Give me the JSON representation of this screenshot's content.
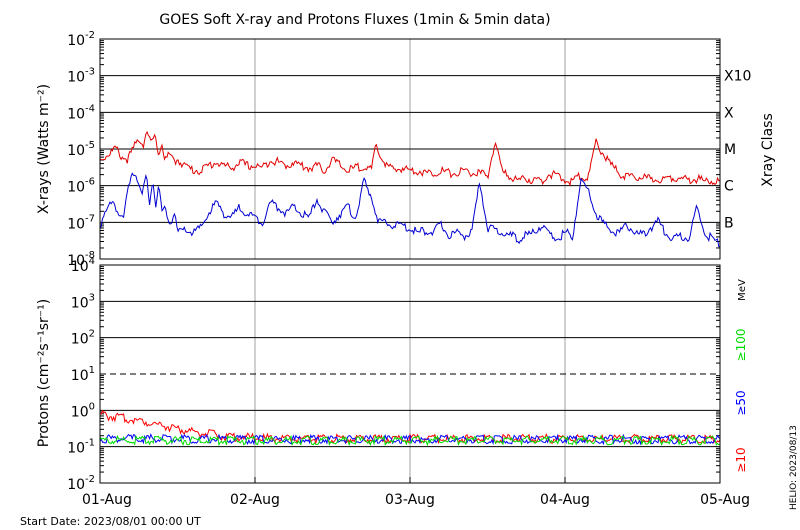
{
  "title": "GOES Soft X-ray and Protons Fluxes   (1min & 5min data)",
  "start_date": "Start Date: 2023/08/01 00:00 UT",
  "credit": "HELIO: 2023/08/13",
  "colors": {
    "xray_long": "#e00000",
    "xray_short": "#0000d0",
    "protons_10": "#ff0000",
    "protons_50": "#0000ff",
    "protons_100": "#00dd00",
    "grid": "#000000",
    "day_line": "#a0a0a0"
  },
  "chart_data": [
    {
      "type": "line",
      "panel": "xray",
      "ylabel": "X-rays (Watts m⁻²)",
      "y_scale": "log",
      "ylim": [
        1e-08,
        0.01
      ],
      "y_ticks": [
        {
          "exp": "-8",
          "value": 1e-08
        },
        {
          "exp": "-7",
          "value": 1e-07
        },
        {
          "exp": "-6",
          "value": 1e-06
        },
        {
          "exp": "-5",
          "value": 1e-05
        },
        {
          "exp": "-4",
          "value": 0.0001
        },
        {
          "exp": "-3",
          "value": 0.001
        },
        {
          "exp": "-2",
          "value": 0.01
        }
      ],
      "right_axis_label": "Xray Class",
      "class_labels": [
        {
          "label": "B",
          "value": 1e-07
        },
        {
          "label": "C",
          "value": 1e-06
        },
        {
          "label": "M",
          "value": 1e-05
        },
        {
          "label": "X",
          "value": 0.0001
        },
        {
          "label": "X10",
          "value": 0.001
        }
      ],
      "x_days": [
        0,
        1,
        2,
        3,
        4
      ],
      "xlim": [
        0,
        4
      ],
      "series": [
        {
          "color": "#e00000",
          "x": [
            0,
            0.05,
            0.1,
            0.14,
            0.18,
            0.22,
            0.25,
            0.28,
            0.3,
            0.33,
            0.35,
            0.38,
            0.4,
            0.42,
            0.45,
            0.48,
            0.5,
            0.55,
            0.6,
            0.65,
            0.7,
            0.75,
            0.8,
            0.85,
            0.9,
            0.95,
            1.0,
            1.05,
            1.1,
            1.15,
            1.2,
            1.25,
            1.3,
            1.35,
            1.4,
            1.45,
            1.5,
            1.55,
            1.6,
            1.65,
            1.7,
            1.75,
            1.78,
            1.8,
            1.85,
            1.9,
            1.95,
            2.0,
            2.05,
            2.1,
            2.15,
            2.2,
            2.25,
            2.3,
            2.35,
            2.4,
            2.45,
            2.5,
            2.55,
            2.6,
            2.65,
            2.7,
            2.75,
            2.8,
            2.85,
            2.9,
            2.95,
            3.0,
            3.05,
            3.1,
            3.15,
            3.2,
            3.25,
            3.3,
            3.35,
            3.4,
            3.45,
            3.5,
            3.55,
            3.6,
            3.65,
            3.7,
            3.75,
            3.8,
            3.85,
            3.9,
            3.95,
            4.0
          ],
          "values": [
            6e-06,
            8e-06,
            1.2e-05,
            7e-06,
            6e-06,
            1.3e-05,
            2.2e-05,
            1.6e-05,
            3.5e-05,
            1.5e-05,
            2.6e-05,
            9e-06,
            1.5e-05,
            6e-06,
            8e-06,
            5e-06,
            6e-06,
            4e-06,
            3e-06,
            3e-06,
            4e-06,
            5e-06,
            4e-06,
            3.5e-06,
            5e-06,
            4e-06,
            4e-06,
            3.5e-06,
            6e-06,
            5e-06,
            4e-06,
            5e-06,
            4e-06,
            3.5e-06,
            4e-06,
            3e-06,
            6e-06,
            4e-06,
            3e-06,
            3.5e-06,
            4e-06,
            3e-06,
            1.3e-05,
            9e-06,
            4e-06,
            3e-06,
            3.5e-06,
            3e-06,
            3e-06,
            2.5e-06,
            2.5e-06,
            3e-06,
            2.5e-06,
            2.5e-06,
            3e-06,
            2.5e-06,
            2.5e-06,
            2e-06,
            1.8e-05,
            2.5e-06,
            2e-06,
            1.6e-06,
            1.8e-06,
            1.6e-06,
            1.5e-06,
            2.5e-06,
            2e-06,
            1.6e-06,
            1.5e-06,
            2.2e-06,
            1.8e-06,
            1.8e-05,
            8e-06,
            4e-06,
            2.5e-06,
            2e-06,
            1.8e-06,
            2e-06,
            1.7e-06,
            1.7e-06,
            1.8e-06,
            2e-06,
            1.8e-06,
            1.6e-06,
            1.8e-06,
            1.5e-06,
            1.6e-06,
            1.5e-06
          ]
        },
        {
          "color": "#0000d0",
          "x": [
            0,
            0.04,
            0.08,
            0.12,
            0.15,
            0.18,
            0.21,
            0.24,
            0.27,
            0.3,
            0.32,
            0.34,
            0.36,
            0.38,
            0.4,
            0.42,
            0.45,
            0.48,
            0.5,
            0.55,
            0.6,
            0.65,
            0.7,
            0.75,
            0.8,
            0.85,
            0.9,
            0.95,
            1.0,
            1.05,
            1.1,
            1.15,
            1.2,
            1.25,
            1.3,
            1.35,
            1.4,
            1.45,
            1.5,
            1.55,
            1.6,
            1.65,
            1.7,
            1.75,
            1.78,
            1.8,
            1.85,
            1.9,
            1.95,
            2.0,
            2.05,
            2.1,
            2.15,
            2.2,
            2.25,
            2.3,
            2.35,
            2.4,
            2.45,
            2.5,
            2.55,
            2.6,
            2.65,
            2.7,
            2.75,
            2.8,
            2.85,
            2.9,
            2.95,
            3.0,
            3.05,
            3.1,
            3.15,
            3.2,
            3.25,
            3.3,
            3.35,
            3.4,
            3.45,
            3.5,
            3.55,
            3.6,
            3.65,
            3.7,
            3.75,
            3.8,
            3.85,
            3.9,
            3.95,
            4.0
          ],
          "values": [
            1e-07,
            2e-07,
            5e-07,
            2e-07,
            1.2e-07,
            1e-06,
            3e-06,
            2e-06,
            6e-07,
            2e-06,
            4e-07,
            2e-06,
            3e-07,
            1e-06,
            2e-07,
            3e-07,
            1e-07,
            2e-07,
            6e-08,
            7e-08,
            6e-08,
            8e-08,
            2e-07,
            4e-07,
            2e-07,
            1.5e-07,
            3e-07,
            2e-07,
            1.5e-07,
            1.2e-07,
            4e-07,
            3e-07,
            2e-07,
            3e-07,
            2e-07,
            1.5e-07,
            5e-07,
            2e-07,
            1.2e-07,
            2e-07,
            3e-07,
            1.5e-07,
            1.5e-06,
            6e-07,
            2e-07,
            1.2e-07,
            1e-07,
            1e-07,
            9e-08,
            8e-08,
            6e-08,
            7e-08,
            6e-08,
            1e-07,
            5e-08,
            6e-08,
            5e-08,
            6e-08,
            1.5e-06,
            8e-08,
            7e-08,
            6e-08,
            5e-08,
            4e-08,
            5e-08,
            6e-08,
            1e-07,
            5e-08,
            4e-08,
            6e-08,
            5e-08,
            1.5e-06,
            9e-07,
            2e-07,
            1e-07,
            7e-08,
            6e-08,
            1e-07,
            6e-08,
            5e-08,
            8e-08,
            1.2e-07,
            6e-08,
            4e-08,
            5e-08,
            4e-08,
            3e-07,
            6e-08,
            4e-08,
            3e-08
          ]
        }
      ]
    },
    {
      "type": "line",
      "panel": "protons",
      "ylabel": "Protons (cm⁻²s⁻¹sr⁻¹)",
      "y_scale": "log",
      "ylim": [
        0.01,
        10000
      ],
      "y_ticks": [
        {
          "exp": "-2",
          "value": 0.01
        },
        {
          "exp": "-1",
          "value": 0.1
        },
        {
          "exp": "0",
          "value": 1
        },
        {
          "exp": "1",
          "value": 10
        },
        {
          "exp": "2",
          "value": 100
        },
        {
          "exp": "3",
          "value": 1000
        },
        {
          "exp": "4",
          "value": 10000
        }
      ],
      "threshold": 10,
      "energy_unit": "MeV",
      "energy_labels": [
        {
          "label": "≥100",
          "color": "#00dd00"
        },
        {
          "label": "≥50",
          "color": "#0000ff"
        },
        {
          "label": "≥10",
          "color": "#ff0000"
        }
      ],
      "x_ticks": [
        "01-Aug",
        "02-Aug",
        "03-Aug",
        "04-Aug",
        "05-Aug"
      ],
      "xlim": [
        0,
        4
      ],
      "series": [
        {
          "color": "#ff0000",
          "x": [
            0,
            0.05,
            0.1,
            0.15,
            0.2,
            0.25,
            0.3,
            0.35,
            0.4,
            0.45,
            0.5,
            0.55,
            0.6,
            0.65,
            0.7,
            0.75,
            0.8,
            0.9,
            1.0,
            1.2,
            1.5,
            2.0,
            2.5,
            3.0,
            3.5,
            4.0
          ],
          "values": [
            0.9,
            0.8,
            0.75,
            0.7,
            0.65,
            0.6,
            0.55,
            0.5,
            0.45,
            0.4,
            0.35,
            0.32,
            0.3,
            0.28,
            0.26,
            0.24,
            0.22,
            0.21,
            0.2,
            0.19,
            0.19,
            0.19,
            0.19,
            0.19,
            0.19,
            0.19
          ]
        },
        {
          "color": "#0000ff",
          "x": [
            0,
            0.5,
            1.0,
            1.5,
            2.0,
            2.5,
            3.0,
            3.5,
            4.0
          ],
          "values": [
            0.19,
            0.19,
            0.18,
            0.18,
            0.18,
            0.18,
            0.18,
            0.18,
            0.18
          ]
        },
        {
          "color": "#00dd00",
          "x": [
            0,
            0.5,
            1.0,
            1.5,
            2.0,
            2.5,
            3.0,
            3.5,
            4.0
          ],
          "values": [
            0.17,
            0.17,
            0.17,
            0.17,
            0.17,
            0.17,
            0.17,
            0.17,
            0.17
          ]
        }
      ]
    }
  ]
}
